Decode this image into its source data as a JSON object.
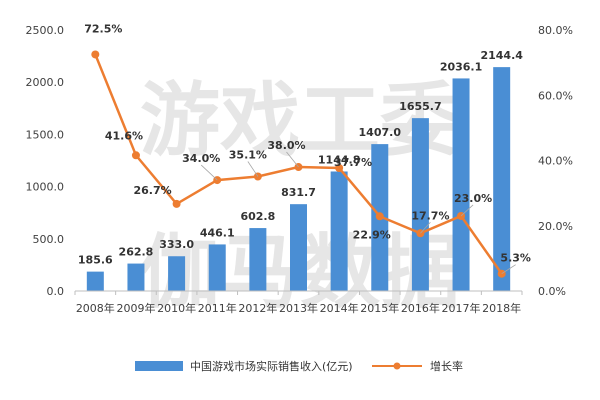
{
  "chart_data": {
    "type": "bar",
    "categories": [
      "2008年",
      "2009年",
      "2010年",
      "2011年",
      "2012年",
      "2013年",
      "2014年",
      "2015年",
      "2016年",
      "2017年",
      "2018年"
    ],
    "series": [
      {
        "name": "中国游戏市场实际销售收入(亿元)",
        "type": "bar",
        "axis": "left",
        "color": "#4a8ed4",
        "values": [
          185.6,
          262.8,
          333.0,
          446.1,
          602.8,
          831.7,
          1144.8,
          1407.0,
          1655.7,
          2036.1,
          2144.4
        ],
        "labels": [
          "185.6",
          "262.8",
          "333.0",
          "446.1",
          "602.8",
          "831.7",
          "1144.8",
          "1407.0",
          "1655.7",
          "2036.1",
          "2144.4"
        ]
      },
      {
        "name": "增长率",
        "type": "line",
        "axis": "right",
        "color": "#ed7d31",
        "values": [
          72.5,
          41.6,
          26.7,
          34.0,
          35.1,
          38.0,
          37.7,
          22.9,
          17.7,
          23.0,
          5.3
        ],
        "labels": [
          "72.5%",
          "41.6%",
          "26.7%",
          "34.0%",
          "35.1%",
          "38.0%",
          "37.7%",
          "22.9%",
          "17.7%",
          "23.0%",
          "5.3%"
        ]
      }
    ],
    "y_left": {
      "ticks": [
        "0.0",
        "500.0",
        "1000.0",
        "1500.0",
        "2000.0",
        "2500.0"
      ],
      "range": [
        0,
        2500
      ]
    },
    "y_right": {
      "ticks": [
        "0.0%",
        "20.0%",
        "40.0%",
        "60.0%",
        "80.0%"
      ],
      "range": [
        0,
        80
      ]
    },
    "legend_position": "bottom",
    "watermark": "游戏工委 伽马数据"
  }
}
